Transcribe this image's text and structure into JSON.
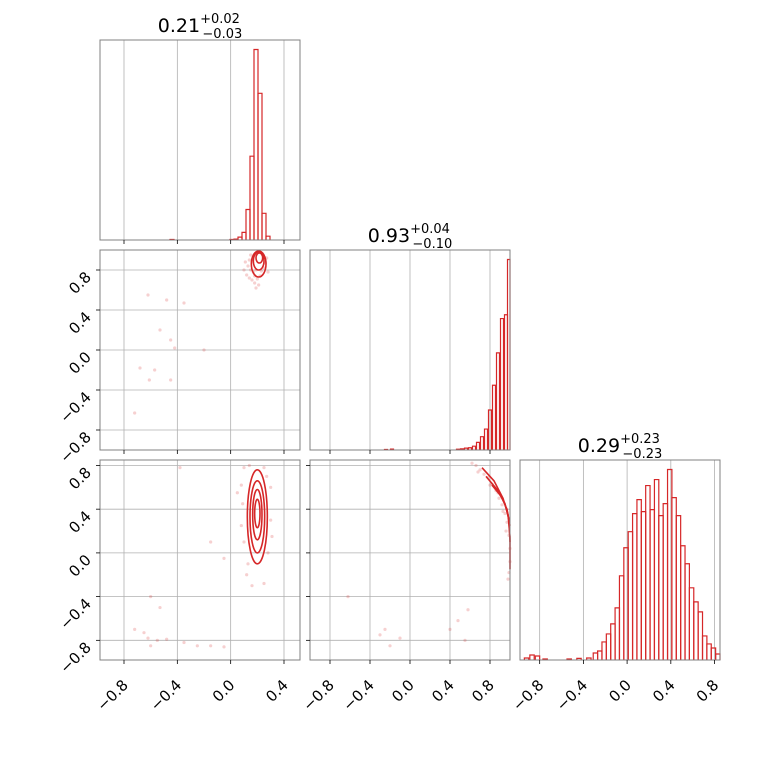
{
  "colors": {
    "series": "#d62728",
    "grid": "#b0b0b0",
    "frame": "#808080",
    "background": "#ffffff"
  },
  "chart_data": [
    {
      "id": "hist_0",
      "type": "bar",
      "variant": "step-histogram",
      "title": {
        "value": "0.21",
        "plus": "+0.02",
        "minus": "−0.03"
      },
      "xlim": [
        -0.98,
        0.52
      ],
      "xticks": [
        -0.8,
        -0.4,
        0.0,
        0.4
      ],
      "grid": true,
      "bins": [
        {
          "x": -0.44,
          "count": 0.003
        },
        {
          "x": 0.01,
          "count": 0.003
        },
        {
          "x": 0.04,
          "count": 0.005
        },
        {
          "x": 0.07,
          "count": 0.015
        },
        {
          "x": 0.1,
          "count": 0.04
        },
        {
          "x": 0.13,
          "count": 0.16
        },
        {
          "x": 0.16,
          "count": 0.44
        },
        {
          "x": 0.19,
          "count": 1.0
        },
        {
          "x": 0.22,
          "count": 0.77
        },
        {
          "x": 0.25,
          "count": 0.14
        },
        {
          "x": 0.28,
          "count": 0.02
        }
      ]
    },
    {
      "id": "hist_1",
      "type": "bar",
      "variant": "step-histogram",
      "title": {
        "value": "0.93",
        "plus": "+0.04",
        "minus": "−0.10"
      },
      "xlim": [
        -1.0,
        1.0
      ],
      "xticks": [
        -0.8,
        -0.4,
        0.0,
        0.4,
        0.8
      ],
      "grid": true,
      "bins": [
        {
          "x": -0.24,
          "count": 0.003
        },
        {
          "x": -0.18,
          "count": 0.005
        },
        {
          "x": 0.48,
          "count": 0.004
        },
        {
          "x": 0.52,
          "count": 0.006
        },
        {
          "x": 0.56,
          "count": 0.01
        },
        {
          "x": 0.6,
          "count": 0.012
        },
        {
          "x": 0.64,
          "count": 0.02
        },
        {
          "x": 0.68,
          "count": 0.04
        },
        {
          "x": 0.72,
          "count": 0.07
        },
        {
          "x": 0.76,
          "count": 0.11
        },
        {
          "x": 0.8,
          "count": 0.21
        },
        {
          "x": 0.84,
          "count": 0.34
        },
        {
          "x": 0.88,
          "count": 0.51
        },
        {
          "x": 0.92,
          "count": 0.69
        },
        {
          "x": 0.96,
          "count": 0.71
        },
        {
          "x": 0.99,
          "count": 1.0
        }
      ]
    },
    {
      "id": "hist_2",
      "type": "bar",
      "variant": "step-histogram",
      "title": {
        "value": "0.29",
        "plus": "+0.23",
        "minus": "−0.23"
      },
      "xlim": [
        -0.98,
        0.85
      ],
      "xticks": [
        -0.8,
        -0.4,
        0.0,
        0.4,
        0.8
      ],
      "grid": true,
      "bins": [
        {
          "x": -0.92,
          "count": 0.01
        },
        {
          "x": -0.87,
          "count": 0.025
        },
        {
          "x": -0.82,
          "count": 0.02
        },
        {
          "x": -0.75,
          "count": 0.005
        },
        {
          "x": -0.53,
          "count": 0.005
        },
        {
          "x": -0.44,
          "count": 0.008
        },
        {
          "x": -0.35,
          "count": 0.01
        },
        {
          "x": -0.29,
          "count": 0.035
        },
        {
          "x": -0.25,
          "count": 0.045
        },
        {
          "x": -0.21,
          "count": 0.09
        },
        {
          "x": -0.17,
          "count": 0.13
        },
        {
          "x": -0.13,
          "count": 0.18
        },
        {
          "x": -0.09,
          "count": 0.26
        },
        {
          "x": -0.05,
          "count": 0.42
        },
        {
          "x": -0.01,
          "count": 0.56
        },
        {
          "x": 0.03,
          "count": 0.64
        },
        {
          "x": 0.07,
          "count": 0.73
        },
        {
          "x": 0.11,
          "count": 0.8
        },
        {
          "x": 0.15,
          "count": 0.74
        },
        {
          "x": 0.19,
          "count": 0.87
        },
        {
          "x": 0.23,
          "count": 0.75
        },
        {
          "x": 0.27,
          "count": 0.9
        },
        {
          "x": 0.31,
          "count": 0.72
        },
        {
          "x": 0.35,
          "count": 0.78
        },
        {
          "x": 0.39,
          "count": 0.95
        },
        {
          "x": 0.43,
          "count": 0.81
        },
        {
          "x": 0.47,
          "count": 0.72
        },
        {
          "x": 0.51,
          "count": 0.57
        },
        {
          "x": 0.55,
          "count": 0.48
        },
        {
          "x": 0.59,
          "count": 0.36
        },
        {
          "x": 0.63,
          "count": 0.29
        },
        {
          "x": 0.67,
          "count": 0.24
        },
        {
          "x": 0.71,
          "count": 0.12
        },
        {
          "x": 0.75,
          "count": 0.08
        },
        {
          "x": 0.79,
          "count": 0.06
        },
        {
          "x": 0.83,
          "count": 0.03
        }
      ]
    },
    {
      "id": "scatter_1_0",
      "type": "scatter",
      "variant": "2d-density-with-contours",
      "xlim": [
        -0.98,
        0.52
      ],
      "ylim": [
        -1.0,
        1.0
      ],
      "xticks": [
        -0.8,
        -0.4,
        0.0,
        0.4
      ],
      "yticks": [
        -0.8,
        -0.4,
        0.0,
        0.4,
        0.8
      ],
      "grid": true,
      "contours": [
        {
          "cx": 0.21,
          "cy": 0.86,
          "rx": 0.055,
          "ry": 0.13,
          "rotate": 0
        },
        {
          "cx": 0.21,
          "cy": 0.89,
          "rx": 0.04,
          "ry": 0.09,
          "rotate": 0
        },
        {
          "cx": 0.215,
          "cy": 0.92,
          "rx": 0.025,
          "ry": 0.05,
          "rotate": 0
        }
      ],
      "points": [
        [
          0.12,
          0.75
        ],
        [
          0.14,
          0.72
        ],
        [
          0.16,
          0.7
        ],
        [
          0.18,
          0.74
        ],
        [
          0.2,
          0.71
        ],
        [
          0.22,
          0.74
        ],
        [
          0.15,
          0.8
        ],
        [
          0.17,
          0.78
        ],
        [
          0.19,
          0.8
        ],
        [
          0.23,
          0.79
        ],
        [
          0.25,
          0.82
        ],
        [
          0.13,
          0.84
        ],
        [
          0.26,
          0.87
        ],
        [
          0.11,
          0.88
        ],
        [
          0.27,
          0.92
        ],
        [
          0.15,
          0.95
        ],
        [
          0.24,
          0.96
        ],
        [
          0.18,
          0.67
        ],
        [
          0.21,
          0.65
        ],
        [
          0.1,
          0.8
        ],
        [
          0.14,
          0.9
        ],
        [
          0.28,
          0.78
        ],
        [
          0.19,
          0.62
        ],
        [
          -0.62,
          0.55
        ],
        [
          -0.48,
          0.5
        ],
        [
          -0.35,
          0.47
        ],
        [
          -0.45,
          0.1
        ],
        [
          -0.42,
          0.02
        ],
        [
          -0.57,
          -0.2
        ],
        [
          -0.61,
          -0.3
        ],
        [
          -0.68,
          -0.18
        ],
        [
          -0.45,
          -0.3
        ],
        [
          -0.72,
          -0.63
        ],
        [
          -0.2,
          0.0
        ],
        [
          -0.53,
          0.2
        ]
      ]
    },
    {
      "id": "scatter_2_0",
      "type": "scatter",
      "variant": "2d-density-with-contours",
      "xlim": [
        -0.98,
        0.52
      ],
      "ylim": [
        -0.98,
        0.85
      ],
      "xticks": [
        -0.8,
        -0.4,
        0.0,
        0.4
      ],
      "yticks": [
        -0.8,
        -0.4,
        0.0,
        0.4,
        0.8
      ],
      "grid": true,
      "contours": [
        {
          "cx": 0.2,
          "cy": 0.33,
          "rx": 0.075,
          "ry": 0.43,
          "rotate": 0
        },
        {
          "cx": 0.2,
          "cy": 0.33,
          "rx": 0.055,
          "ry": 0.33,
          "rotate": 0
        },
        {
          "cx": 0.2,
          "cy": 0.35,
          "rx": 0.035,
          "ry": 0.23,
          "rotate": 0
        },
        {
          "cx": 0.2,
          "cy": 0.36,
          "rx": 0.02,
          "ry": 0.13,
          "rotate": 0
        }
      ],
      "points": [
        [
          0.1,
          0.78
        ],
        [
          0.14,
          0.8
        ],
        [
          0.25,
          0.78
        ],
        [
          0.08,
          0.62
        ],
        [
          0.3,
          0.6
        ],
        [
          0.09,
          0.45
        ],
        [
          0.3,
          0.3
        ],
        [
          0.1,
          0.1
        ],
        [
          0.28,
          0.0
        ],
        [
          0.12,
          -0.2
        ],
        [
          0.25,
          -0.28
        ],
        [
          0.16,
          -0.3
        ],
        [
          0.08,
          0.25
        ],
        [
          0.31,
          0.15
        ],
        [
          0.13,
          -0.1
        ],
        [
          0.27,
          0.7
        ],
        [
          0.05,
          0.55
        ],
        [
          -0.38,
          0.78
        ],
        [
          -0.15,
          0.1
        ],
        [
          -0.05,
          -0.05
        ],
        [
          -0.6,
          -0.4
        ],
        [
          -0.53,
          -0.5
        ],
        [
          -0.72,
          -0.7
        ],
        [
          -0.65,
          -0.73
        ],
        [
          -0.62,
          -0.78
        ],
        [
          -0.55,
          -0.8
        ],
        [
          -0.48,
          -0.79
        ],
        [
          -0.35,
          -0.82
        ],
        [
          -0.25,
          -0.85
        ],
        [
          -0.15,
          -0.85
        ],
        [
          -0.05,
          -0.86
        ],
        [
          -0.6,
          -0.85
        ]
      ]
    },
    {
      "id": "scatter_2_1",
      "type": "scatter",
      "variant": "2d-density-with-contours",
      "xlim": [
        -1.0,
        1.0
      ],
      "ylim": [
        -0.98,
        0.85
      ],
      "xticks": [
        -0.8,
        -0.4,
        0.0,
        0.4,
        0.8
      ],
      "yticks": [
        -0.8,
        -0.4,
        0.0,
        0.4,
        0.8
      ],
      "grid": true,
      "contours": [
        {
          "path_data": [
            [
              0.72,
              0.78
            ],
            [
              0.84,
              0.66
            ],
            [
              0.93,
              0.5
            ],
            [
              0.98,
              0.35
            ],
            [
              1.0,
              0.15
            ],
            [
              1.0,
              -0.15
            ]
          ]
        },
        {
          "path_data": [
            [
              0.76,
              0.7
            ],
            [
              0.87,
              0.58
            ],
            [
              0.95,
              0.45
            ],
            [
              0.99,
              0.3
            ],
            [
              1.0,
              0.1
            ]
          ]
        },
        {
          "path_data": [
            [
              0.82,
              0.62
            ],
            [
              0.91,
              0.52
            ],
            [
              0.97,
              0.4
            ],
            [
              1.0,
              0.25
            ]
          ]
        }
      ],
      "points": [
        [
          0.62,
          0.82
        ],
        [
          0.66,
          0.8
        ],
        [
          0.7,
          0.76
        ],
        [
          0.74,
          0.72
        ],
        [
          0.78,
          0.69
        ],
        [
          0.82,
          0.63
        ],
        [
          0.86,
          0.57
        ],
        [
          0.89,
          0.5
        ],
        [
          0.92,
          0.44
        ],
        [
          0.95,
          0.36
        ],
        [
          0.97,
          0.28
        ],
        [
          0.99,
          0.16
        ],
        [
          1.0,
          0.04
        ],
        [
          1.0,
          -0.08
        ],
        [
          0.99,
          -0.18
        ],
        [
          0.98,
          -0.24
        ],
        [
          0.68,
          0.74
        ],
        [
          0.8,
          0.62
        ],
        [
          0.88,
          0.55
        ],
        [
          0.93,
          0.38
        ],
        [
          0.96,
          0.2
        ],
        [
          0.58,
          -0.52
        ],
        [
          0.48,
          -0.62
        ],
        [
          0.4,
          -0.7
        ],
        [
          -0.25,
          -0.7
        ],
        [
          -0.3,
          -0.75
        ],
        [
          -0.1,
          -0.78
        ],
        [
          0.55,
          -0.8
        ],
        [
          -0.62,
          -0.4
        ],
        [
          -0.2,
          -0.85
        ]
      ]
    }
  ]
}
